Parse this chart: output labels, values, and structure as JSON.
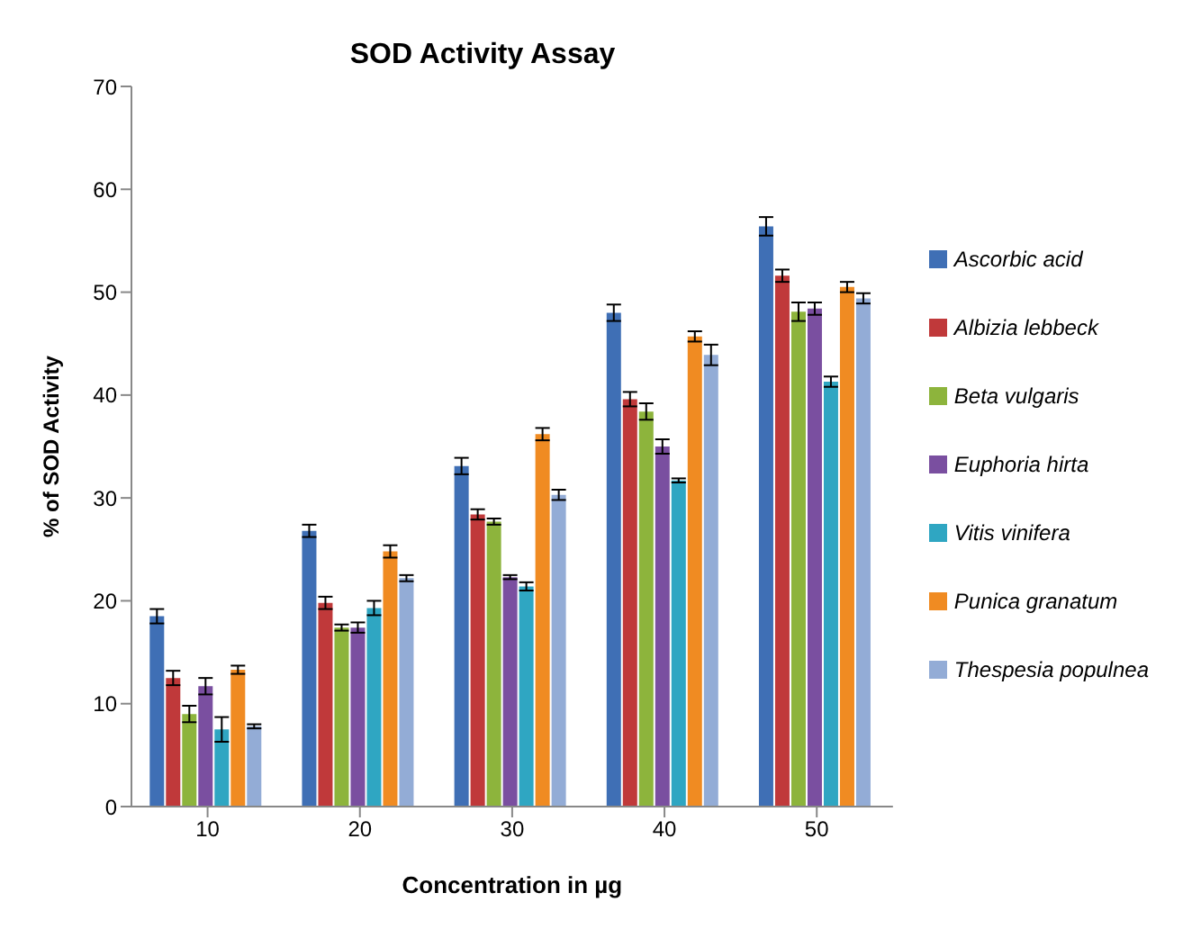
{
  "chart_data": {
    "type": "bar",
    "title": "SOD Activity Assay",
    "xlabel": "Concentration in µg",
    "ylabel": "% of SOD Activity",
    "categories": [
      "10",
      "20",
      "30",
      "40",
      "50"
    ],
    "series": [
      {
        "name": "Ascorbic acid",
        "color": "#3f6fb5",
        "values": [
          18.5,
          26.8,
          33.1,
          48,
          56.4
        ],
        "errors": [
          0.7,
          0.6,
          0.8,
          0.8,
          0.9
        ]
      },
      {
        "name": "Albizia lebbeck",
        "color": "#c0393a",
        "values": [
          12.5,
          19.8,
          28.4,
          39.6,
          51.6
        ],
        "errors": [
          0.7,
          0.6,
          0.5,
          0.7,
          0.6
        ]
      },
      {
        "name": "Beta vulgaris",
        "color": "#8db43c",
        "values": [
          9,
          17.4,
          27.7,
          38.4,
          48.1
        ],
        "errors": [
          0.8,
          0.3,
          0.3,
          0.8,
          0.9
        ]
      },
      {
        "name": "Euphoria hirta",
        "color": "#7a4fa0",
        "values": [
          11.7,
          17.4,
          22.3,
          35,
          48.4
        ],
        "errors": [
          0.8,
          0.5,
          0.2,
          0.7,
          0.6
        ]
      },
      {
        "name": "Vitis vinifera",
        "color": "#2fa6c2",
        "values": [
          7.5,
          19.3,
          21.4,
          31.7,
          41.3
        ],
        "errors": [
          1.2,
          0.7,
          0.4,
          0.2,
          0.5
        ]
      },
      {
        "name": "Punica granatum",
        "color": "#f08b22",
        "values": [
          13.3,
          24.8,
          36.2,
          45.7,
          50.5
        ],
        "errors": [
          0.4,
          0.6,
          0.6,
          0.5,
          0.5
        ]
      },
      {
        "name": "Thespesia populnea",
        "color": "#93acd6",
        "values": [
          7.8,
          22.2,
          30.3,
          43.9,
          49.4
        ],
        "errors": [
          0.2,
          0.3,
          0.5,
          1,
          0.5
        ]
      }
    ],
    "ylim": [
      0,
      70
    ],
    "yticks": [
      0,
      10,
      20,
      30,
      40,
      50,
      60,
      70
    ],
    "legend": "right"
  }
}
